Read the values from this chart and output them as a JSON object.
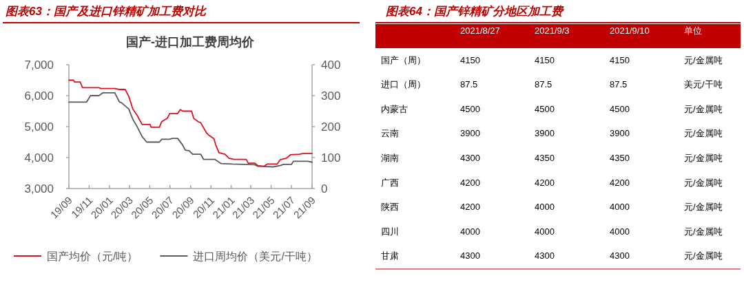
{
  "chart_data": [
    {
      "type": "line",
      "title": "图表63：国产及进口锌精矿加工费对比",
      "subtitle": "国产-进口加工费周均价",
      "xlim": [
        "2019-09-01",
        "2021-09-01"
      ],
      "xticks": [
        {
          "value": "2019-09-01",
          "label": "19/09"
        },
        {
          "value": "2019-11-01",
          "label": "19/11"
        },
        {
          "value": "2020-01-01",
          "label": "20/01"
        },
        {
          "value": "2020-03-01",
          "label": "20/03"
        },
        {
          "value": "2020-05-01",
          "label": "20/05"
        },
        {
          "value": "2020-07-01",
          "label": "20/07"
        },
        {
          "value": "2020-09-01",
          "label": "20/09"
        },
        {
          "value": "2020-11-01",
          "label": "20/11"
        },
        {
          "value": "2021-01-01",
          "label": "21/01"
        },
        {
          "value": "2021-03-01",
          "label": "21/03"
        },
        {
          "value": "2021-05-01",
          "label": "21/05"
        },
        {
          "value": "2021-07-01",
          "label": "21/07"
        },
        {
          "value": "2021-09-01",
          "label": "21/09"
        }
      ],
      "ylim": [
        3000,
        7000
      ],
      "yticks": [
        {
          "value": 3000,
          "label": "3,000"
        },
        {
          "value": 4000,
          "label": "4,000"
        },
        {
          "value": 5000,
          "label": "5,000"
        },
        {
          "value": 6000,
          "label": "6,000"
        },
        {
          "value": 7000,
          "label": "7,000"
        }
      ],
      "y2lim": [
        0,
        400
      ],
      "y2ticks": [
        0,
        100,
        200,
        300,
        400
      ],
      "grid": false,
      "legend": "bottom",
      "line_style": "solid",
      "marker": "none",
      "series": [
        {
          "name": "国产均价（元/吨）",
          "color": "#e0101e",
          "x": [
            "2019-09-01",
            "2019-09-15",
            "2019-09-18",
            "2019-10-05",
            "2019-10-12",
            "2019-11-30",
            "2019-12-06",
            "2020-01-17",
            "2020-01-31",
            "2020-02-17",
            "2020-02-28",
            "2020-03-11",
            "2020-03-25",
            "2020-04-08",
            "2020-05-02",
            "2020-05-05",
            "2020-05-30",
            "2020-06-06",
            "2020-06-23",
            "2020-06-30",
            "2020-07-24",
            "2020-08-01",
            "2020-08-08",
            "2020-09-04",
            "2020-09-10",
            "2020-09-25",
            "2020-10-01",
            "2020-10-19",
            "2020-10-25",
            "2020-11-10",
            "2020-11-16",
            "2020-11-25",
            "2020-12-13",
            "2020-12-25",
            "2021-01-10",
            "2021-02-15",
            "2021-02-21",
            "2021-03-13",
            "2021-03-22",
            "2021-04-10",
            "2021-04-19",
            "2021-05-19",
            "2021-05-28",
            "2021-06-16",
            "2021-06-28",
            "2021-07-25",
            "2021-08-04",
            "2021-09-01"
          ],
          "values": [
            6500,
            6500,
            6440,
            6440,
            6260,
            6260,
            6230,
            6230,
            6200,
            6200,
            5980,
            5570,
            5350,
            5070,
            5070,
            4980,
            4980,
            5160,
            5270,
            5420,
            5420,
            5550,
            5500,
            5500,
            5270,
            5150,
            5130,
            4790,
            4730,
            4610,
            4390,
            4160,
            4110,
            3980,
            3940,
            3940,
            3820,
            3820,
            3740,
            3720,
            3790,
            3790,
            3930,
            3980,
            4090,
            4110,
            4130,
            4130
          ]
        },
        {
          "name": "进口周均价（美元/干吨）",
          "color": "#595959",
          "axis": "y2",
          "x": [
            "2019-09-01",
            "2019-10-24",
            "2019-11-05",
            "2019-11-30",
            "2019-12-12",
            "2020-01-17",
            "2020-01-31",
            "2020-02-05",
            "2020-02-28",
            "2020-03-11",
            "2020-03-25",
            "2020-04-08",
            "2020-04-22",
            "2020-05-30",
            "2020-06-06",
            "2020-06-30",
            "2020-07-08",
            "2020-07-24",
            "2020-08-07",
            "2020-08-16",
            "2020-08-28",
            "2020-09-07",
            "2020-10-01",
            "2020-10-10",
            "2020-11-13",
            "2020-12-01",
            "2021-01-04",
            "2021-03-13",
            "2021-03-22",
            "2021-05-07",
            "2021-05-28",
            "2021-06-07",
            "2021-07-01",
            "2021-07-07",
            "2021-08-19",
            "2021-09-01"
          ],
          "values": [
            279,
            279,
            300,
            300,
            309,
            309,
            279,
            278,
            257,
            224,
            198,
            168,
            150,
            150,
            159,
            159,
            162,
            162,
            142,
            124,
            122,
            111,
            111,
            94,
            94,
            81,
            79,
            77,
            72,
            70,
            74,
            78,
            78,
            88,
            88,
            85
          ]
        }
      ]
    },
    {
      "type": "heatmap",
      "title": "图表64：国产锌精矿分地区加工费",
      "categories": [
        "2021/8/27",
        "2021/9/3",
        "2021/9/10"
      ],
      "annotations": [
        "单位"
      ],
      "y2_categories": [
        "元/金属吨",
        "美元/干吨",
        "元/金属吨",
        "元/金属吨",
        "元/金属吨",
        "元/金属吨",
        "元/金属吨",
        "元/金属吨",
        "元/金属吨"
      ],
      "y_categories": [
        "国产（周）",
        "进口（周）",
        "内蒙古",
        "云南",
        "湖南",
        "广西",
        "陕西",
        "四川",
        "甘肃"
      ],
      "cells": [
        [
          4150,
          4150,
          4150
        ],
        [
          87.5,
          87.5,
          87.5
        ],
        [
          4500,
          4500,
          4500
        ],
        [
          3900,
          3900,
          3900
        ],
        [
          4300,
          4350,
          4350
        ],
        [
          4200,
          4200,
          4200
        ],
        [
          4200,
          4000,
          4000
        ],
        [
          4000,
          4000,
          4000
        ],
        [
          4300,
          4300,
          4300
        ]
      ],
      "data_labels": true
    }
  ]
}
